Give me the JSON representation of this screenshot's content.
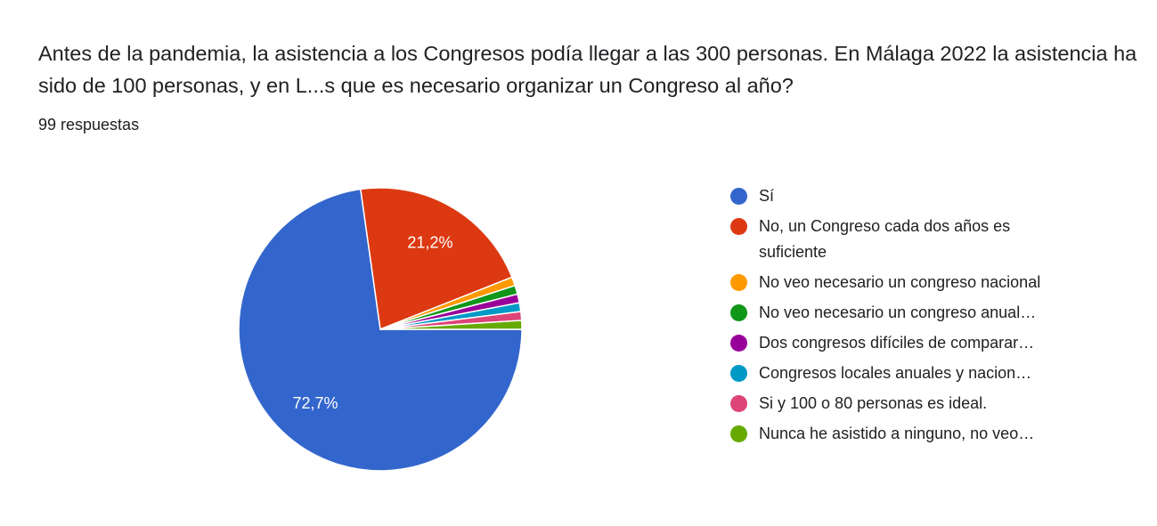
{
  "chart_data": {
    "type": "pie",
    "title": "Antes de la pandemia, la asistencia a los Congresos podía llegar a las 300 personas. En Málaga 2022 la asistencia ha sido de 100 personas, y en L...s que es necesario organizar un Congreso al año?",
    "subtitle": "99 respuestas",
    "categories": [
      "Sí",
      "No, un Congreso cada dos años es suficiente",
      "No veo necesario un congreso nacional",
      "No veo necesario un congreso anual…",
      "Dos congresos difíciles de comparar…",
      "Congresos locales anuales y nacion…",
      "Si y 100 o 80 personas es ideal.",
      "Nunca he asistido a ninguno, no veo…"
    ],
    "values": [
      72.7,
      21.2,
      1.0,
      1.0,
      1.0,
      1.0,
      1.0,
      1.0
    ],
    "value_labels": [
      "72,7%",
      "21,2%",
      null,
      null,
      null,
      null,
      null,
      null
    ],
    "colors": [
      "#3366cc",
      "#dc3912",
      "#ff9900",
      "#109618",
      "#990099",
      "#0099c6",
      "#dd4477",
      "#66aa00"
    ]
  }
}
